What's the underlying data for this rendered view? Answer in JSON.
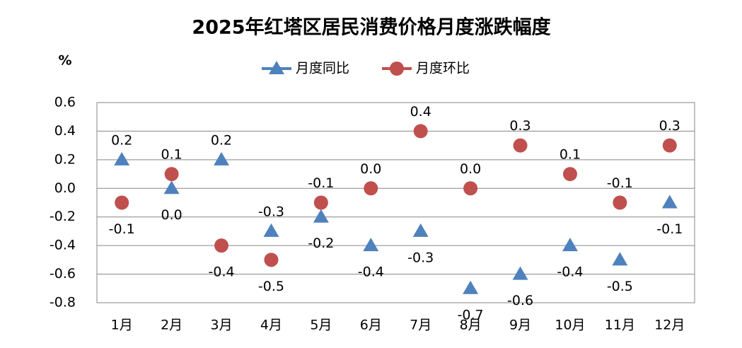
{
  "chart_data": {
    "type": "line",
    "title": "2025年红塔区居民消费价格月度涨跌幅度",
    "y_label": "%",
    "categories": [
      "1月",
      "2月",
      "3月",
      "4月",
      "5月",
      "6月",
      "7月",
      "8月",
      "9月",
      "10月",
      "11月",
      "12月"
    ],
    "series": [
      {
        "name": "月度同比",
        "color": "#4f81bd",
        "marker": "triangle",
        "values": [
          0.2,
          0,
          0.2,
          -0.3,
          -0.2,
          -0.4,
          -0.3,
          -0.7,
          -0.6,
          -0.4,
          -0.5,
          -0.1
        ],
        "value_labels": [
          "0.2",
          "0.0",
          "0.2",
          "-0.3",
          "-0.2",
          "-0.4",
          "-0.3",
          "-0.7",
          "-0.6",
          "-0.4",
          "-0.5",
          "-0.1"
        ]
      },
      {
        "name": "月度环比",
        "color": "#c0504d",
        "marker": "circle",
        "values": [
          -0.1,
          0.1,
          -0.4,
          -0.5,
          -0.1,
          0,
          0.4,
          0,
          0.3,
          0.1,
          -0.1,
          0.3
        ],
        "value_labels": [
          "-0.1",
          "0.1",
          "-0.4",
          "-0.5",
          "-0.1",
          "0.0",
          "0.4",
          "0.0",
          "0.3",
          "0.1",
          "-0.1",
          "0.3"
        ]
      }
    ],
    "ylim": [
      -0.8,
      0.6
    ],
    "yticks": [
      -0.8,
      -0.6,
      -0.4,
      -0.2,
      {
        "value": 0,
        "label": "0.0"
      },
      0.2,
      0.4,
      0.6
    ],
    "grid": true,
    "legend": "top"
  }
}
